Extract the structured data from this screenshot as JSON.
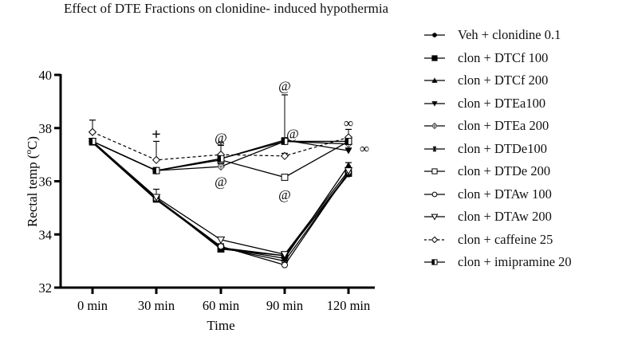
{
  "chart_data": {
    "type": "line",
    "title": "Effect of DTE Fractions on clonidine- induced hypothermia",
    "xlabel": "Time",
    "ylabel": "Rectal temp (°C)",
    "ylabel_parts": {
      "main": "Rectal temp (",
      "sup": "o",
      "unit": "C)"
    },
    "categories": [
      "0 min",
      "30 min",
      "60 min",
      "90 min",
      "120 min"
    ],
    "ylim": [
      32,
      40
    ],
    "yticks": [
      "32",
      "34",
      "36",
      "38",
      "40"
    ],
    "grid": false,
    "legend_position": "right",
    "series": [
      {
        "name": "Veh + clonidine 0.1",
        "marker": "circle-filled",
        "dash": false,
        "values": [
          37.5,
          35.35,
          33.5,
          33.2,
          36.25
        ],
        "err": [
          0.05,
          0.15,
          0.1,
          0.1,
          0.1
        ]
      },
      {
        "name": "clon + DTCf 100",
        "marker": "square-filled",
        "dash": false,
        "values": [
          37.5,
          35.35,
          33.45,
          33.2,
          36.3
        ],
        "err": [
          0.05,
          0.1,
          0.1,
          0.1,
          0.1
        ]
      },
      {
        "name": "clon + DTCf 200",
        "marker": "triangle-up-filled",
        "dash": false,
        "values": [
          37.45,
          35.3,
          33.5,
          33.1,
          36.6
        ],
        "err": [
          0.05,
          0.1,
          0.1,
          0.1,
          0.1
        ]
      },
      {
        "name": "clon + DTEa100",
        "marker": "triangle-down-filled",
        "dash": false,
        "values": [
          37.5,
          36.4,
          36.85,
          37.55,
          37.15
        ],
        "err": [
          0.05,
          0.1,
          0.5,
          1.7,
          0.1
        ]
      },
      {
        "name": "clon + DTEa 200",
        "marker": "diamond-cross",
        "dash": false,
        "values": [
          37.5,
          36.4,
          36.55,
          37.5,
          37.4
        ],
        "err": [
          0.05,
          0.1,
          0.1,
          0.1,
          0.1
        ]
      },
      {
        "name": "clon + DTDe100",
        "marker": "asterisk",
        "dash": false,
        "values": [
          37.5,
          35.35,
          33.5,
          33.0,
          36.3
        ],
        "err": [
          0.05,
          0.1,
          0.1,
          0.1,
          0.1
        ]
      },
      {
        "name": "clon + DTDe 200",
        "marker": "square-open",
        "dash": false,
        "values": [
          37.5,
          36.4,
          36.8,
          36.15,
          37.5
        ],
        "err": [
          0.05,
          0.1,
          0.1,
          0.1,
          0.1
        ]
      },
      {
        "name": "clon + DTAw 100",
        "marker": "circle-open",
        "dash": false,
        "values": [
          37.5,
          35.35,
          33.55,
          32.85,
          36.35
        ],
        "err": [
          0.05,
          0.1,
          0.1,
          0.1,
          0.1
        ]
      },
      {
        "name": "clon + DTAw 200",
        "marker": "triangle-down-open",
        "dash": false,
        "values": [
          37.5,
          35.4,
          33.8,
          33.25,
          36.4
        ],
        "err": [
          0.05,
          0.3,
          0.1,
          0.1,
          0.1
        ]
      },
      {
        "name": "clon + caffeine 25",
        "marker": "diamond-open",
        "dash": true,
        "values": [
          37.85,
          36.8,
          37.0,
          36.95,
          37.65
        ],
        "err": [
          0.45,
          0.7,
          0.45,
          0.1,
          0.3
        ]
      },
      {
        "name": "clon + imipramine 20",
        "marker": "square-half",
        "dash": false,
        "values": [
          37.5,
          36.4,
          36.85,
          37.5,
          37.5
        ],
        "err": [
          0.05,
          0.1,
          0.1,
          0.1,
          0.1
        ]
      }
    ],
    "annotations": [
      {
        "text": "+",
        "x": "30 min",
        "y": 37.75
      },
      {
        "text": "@",
        "x": "60 min",
        "y": 37.65
      },
      {
        "text": "@",
        "x": "60 min",
        "y": 36.0
      },
      {
        "text": "@",
        "x": "90 min",
        "y": 39.6
      },
      {
        "text": "@",
        "x": "90 min",
        "y": 37.8
      },
      {
        "text": "@",
        "x": "90 min",
        "y": 35.5
      },
      {
        "text": "∞",
        "x": "120 min",
        "y": 38.2
      },
      {
        "text": "∞",
        "x": "120 min",
        "y": 37.25
      }
    ]
  }
}
